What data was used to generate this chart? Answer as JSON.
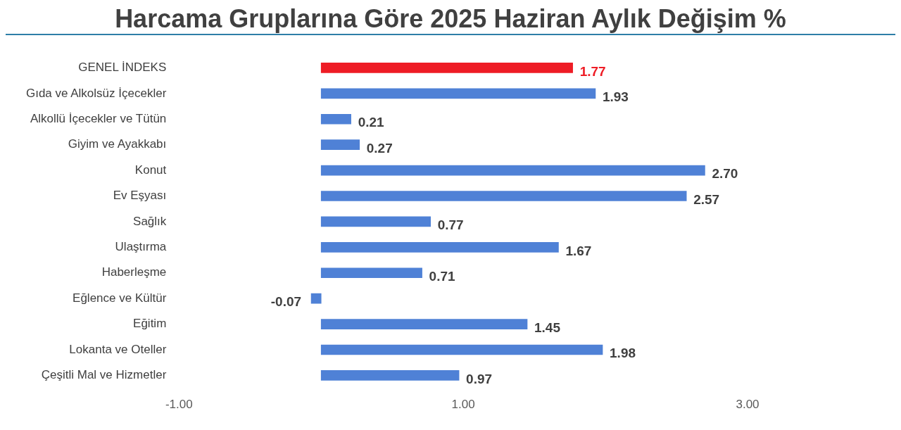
{
  "chart_data": {
    "type": "bar",
    "orientation": "horizontal",
    "title": "Harcama Gruplarına Göre 2025 Haziran Aylık Değişim %",
    "categories": [
      "GENEL İNDEKS",
      "Gıda ve Alkolsüz İçecekler",
      "Alkollü İçecekler ve Tütün",
      "Giyim ve Ayakkabı",
      "Konut",
      "Ev Eşyası",
      "Sağlık",
      "Ulaştırma",
      "Haberleşme",
      "Eğlence ve Kültür",
      "Eğitim",
      "Lokanta ve Oteller",
      "Çeşitli Mal ve Hizmetler"
    ],
    "values": [
      1.77,
      1.93,
      0.21,
      0.27,
      2.7,
      2.57,
      0.77,
      1.67,
      0.71,
      -0.07,
      1.45,
      1.98,
      0.97
    ],
    "colors": [
      "#ee1c25",
      "#4f81d6",
      "#4f81d6",
      "#4f81d6",
      "#4f81d6",
      "#4f81d6",
      "#4f81d6",
      "#4f81d6",
      "#4f81d6",
      "#4f81d6",
      "#4f81d6",
      "#4f81d6",
      "#4f81d6"
    ],
    "value_labels": [
      "1.77",
      "1.93",
      "0.21",
      "0.27",
      "2.70",
      "2.57",
      "0.77",
      "1.67",
      "0.71",
      "-0.07",
      "1.45",
      "1.98",
      "0.97"
    ],
    "xlim": [
      -1,
      3
    ],
    "xticks": [
      {
        "value": -1,
        "label": "-1.00"
      },
      {
        "value": 1,
        "label": "1.00"
      },
      {
        "value": 3,
        "label": "3.00"
      }
    ],
    "grid": false,
    "legend": false
  }
}
